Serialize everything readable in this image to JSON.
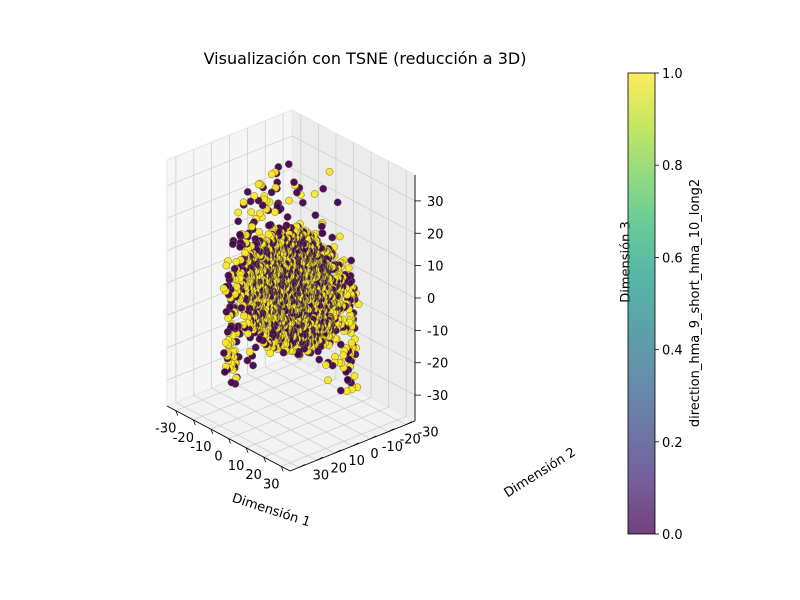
{
  "chart_data": {
    "type": "scatter",
    "projection": "3d",
    "title": "Visualización con TSNE (reducción a 3D)",
    "xlabel": "Dimensión 1",
    "ylabel": "Dimensión 2",
    "zlabel": "Dimensión 3",
    "xlim": [
      -35,
      35
    ],
    "ylim": [
      -35,
      35
    ],
    "zlim": [
      -38,
      38
    ],
    "xticks": [
      -30,
      -20,
      -10,
      0,
      10,
      20,
      30
    ],
    "yticks": [
      -30,
      -20,
      -10,
      0,
      10,
      20,
      30
    ],
    "zticks": [
      -30,
      -20,
      -10,
      0,
      10,
      20,
      30
    ],
    "grid": true,
    "colormap": "viridis",
    "class_colors": {
      "0": "#440154",
      "1": "#fde725"
    },
    "point_outline": "#6b6b3a",
    "colorbar": {
      "label": "direction_hma_9_short_hma_10_long2",
      "range": [
        0.0,
        1.0
      ],
      "ticks": [
        "0.0",
        "0.2",
        "0.4",
        "0.6",
        "0.8",
        "1.0"
      ],
      "alpha": 0.75
    },
    "series": [
      {
        "values": [
          0,
          1
        ],
        "point_count": 2400
      }
    ]
  }
}
